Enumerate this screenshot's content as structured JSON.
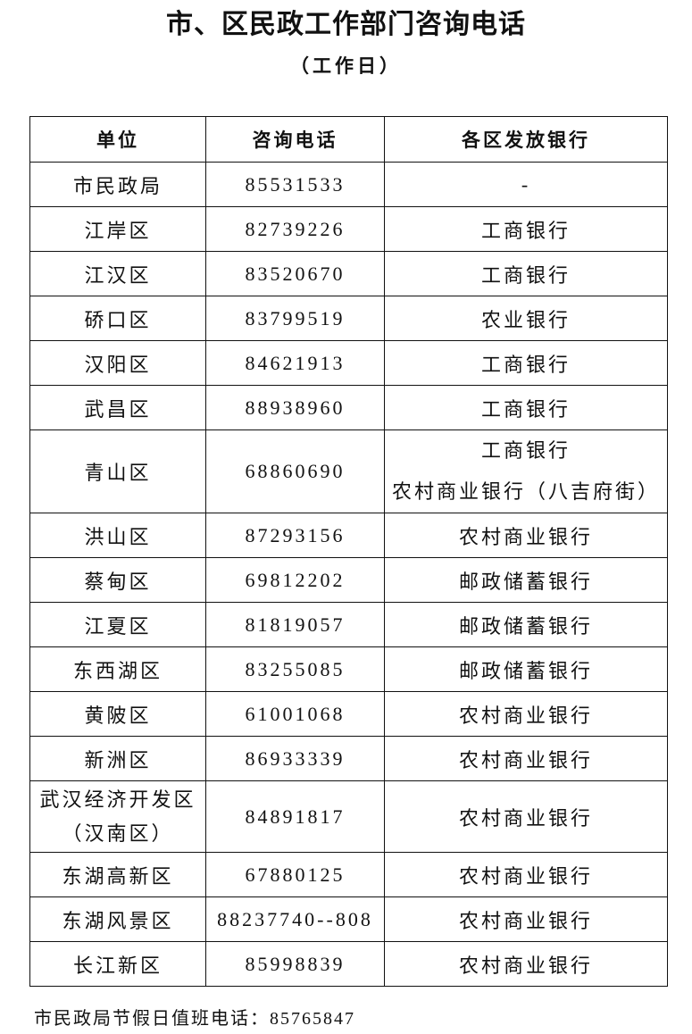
{
  "title": "市、区民政工作部门咨询电话",
  "subtitle": "（工作日）",
  "table": {
    "headers": [
      "单位",
      "咨询电话",
      "各区发放银行"
    ],
    "rows": [
      {
        "unit": "市民政局",
        "phone": "85531533",
        "bank": [
          "-"
        ]
      },
      {
        "unit": "江岸区",
        "phone": "82739226",
        "bank": [
          "工商银行"
        ]
      },
      {
        "unit": "江汉区",
        "phone": "83520670",
        "bank": [
          "工商银行"
        ]
      },
      {
        "unit": "硚口区",
        "phone": "83799519",
        "bank": [
          "农业银行"
        ]
      },
      {
        "unit": "汉阳区",
        "phone": "84621913",
        "bank": [
          "工商银行"
        ]
      },
      {
        "unit": "武昌区",
        "phone": "88938960",
        "bank": [
          "工商银行"
        ]
      },
      {
        "unit": "青山区",
        "phone": "68860690",
        "bank": [
          "工商银行",
          "农村商业银行（八吉府街）"
        ]
      },
      {
        "unit": "洪山区",
        "phone": "87293156",
        "bank": [
          "农村商业银行"
        ]
      },
      {
        "unit": "蔡甸区",
        "phone": "69812202",
        "bank": [
          "邮政储蓄银行"
        ]
      },
      {
        "unit": "江夏区",
        "phone": "81819057",
        "bank": [
          "邮政储蓄银行"
        ]
      },
      {
        "unit": "东西湖区",
        "phone": "83255085",
        "bank": [
          "邮政储蓄银行"
        ]
      },
      {
        "unit": "黄陂区",
        "phone": "61001068",
        "bank": [
          "农村商业银行"
        ]
      },
      {
        "unit": "新洲区",
        "phone": "86933339",
        "bank": [
          "农村商业银行"
        ]
      },
      {
        "unit": "武汉经济开发区（汉南区）",
        "unit_lines": [
          "武汉经济开发区",
          "（汉南区）"
        ],
        "phone": "84891817",
        "bank": [
          "农村商业银行"
        ]
      },
      {
        "unit": "东湖高新区",
        "phone": "67880125",
        "bank": [
          "农村商业银行"
        ]
      },
      {
        "unit": "东湖风景区",
        "phone": "88237740--808",
        "bank": [
          "农村商业银行"
        ]
      },
      {
        "unit": "长江新区",
        "phone": "85998839",
        "bank": [
          "农村商业银行"
        ]
      }
    ]
  },
  "footer": "市民政局节假日值班电话：85765847"
}
